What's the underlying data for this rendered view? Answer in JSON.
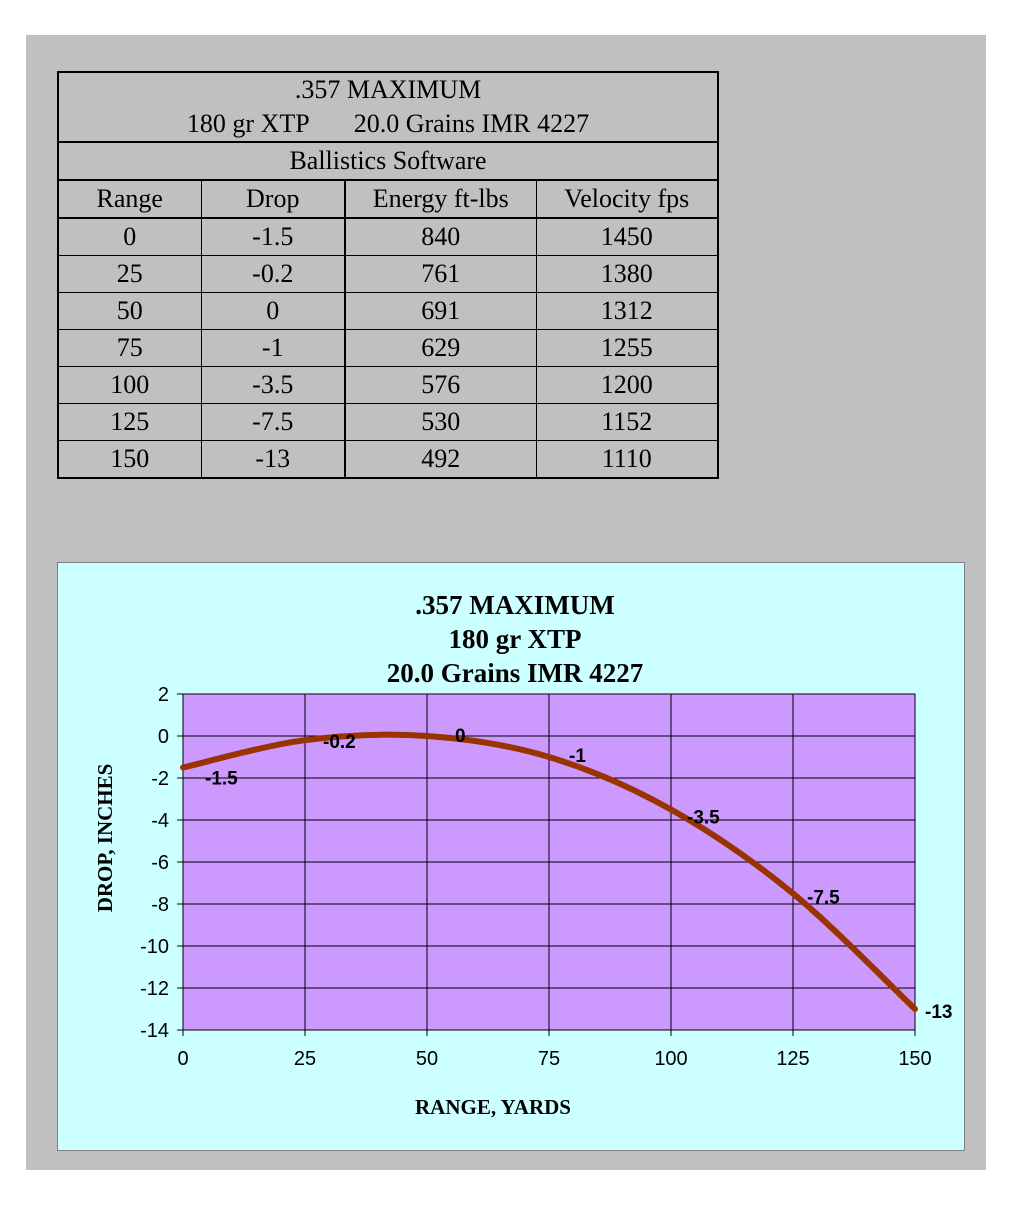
{
  "table": {
    "title": ".357 MAXIMUM",
    "subtitle_bullet": "180 gr XTP",
    "subtitle_powder": "20.0 Grains IMR 4227",
    "source": "Ballistics Software",
    "headers": [
      "Range",
      "Drop",
      "Energy ft-lbs",
      "Velocity fps"
    ],
    "rows": [
      [
        "0",
        "-1.5",
        "840",
        "1450"
      ],
      [
        "25",
        "-0.2",
        "761",
        "1380"
      ],
      [
        "50",
        "0",
        "691",
        "1312"
      ],
      [
        "75",
        "-1",
        "629",
        "1255"
      ],
      [
        "100",
        "-3.5",
        "576",
        "1200"
      ],
      [
        "125",
        "-7.5",
        "530",
        "1152"
      ],
      [
        "150",
        "-13",
        "492",
        "1110"
      ]
    ]
  },
  "chart_data": {
    "type": "line",
    "title_lines": [
      ".357 MAXIMUM",
      "180 gr XTP",
      "20.0 Grains IMR 4227"
    ],
    "xlabel": "RANGE, YARDS",
    "ylabel": "DROP, INCHES",
    "x": [
      0,
      25,
      50,
      75,
      100,
      125,
      150
    ],
    "series": [
      {
        "values": [
          -1.5,
          -0.2,
          0,
          -1,
          -3.5,
          -7.5,
          -13
        ]
      }
    ],
    "data_labels": [
      "-1.5",
      "-0.2",
      "0",
      "-1",
      "-3.5",
      "-7.5",
      "-13"
    ],
    "xlim": [
      0,
      150
    ],
    "ylim": [
      -14,
      2
    ],
    "xticks": [
      0,
      25,
      50,
      75,
      100,
      125,
      150
    ],
    "yticks": [
      2,
      0,
      -2,
      -4,
      -6,
      -8,
      -10,
      -12,
      -14
    ],
    "grid": true,
    "legend": "none",
    "plot_bg": "#cc99ff",
    "chart_bg": "#ccffff",
    "line_color": "#993300",
    "smooth": true
  }
}
